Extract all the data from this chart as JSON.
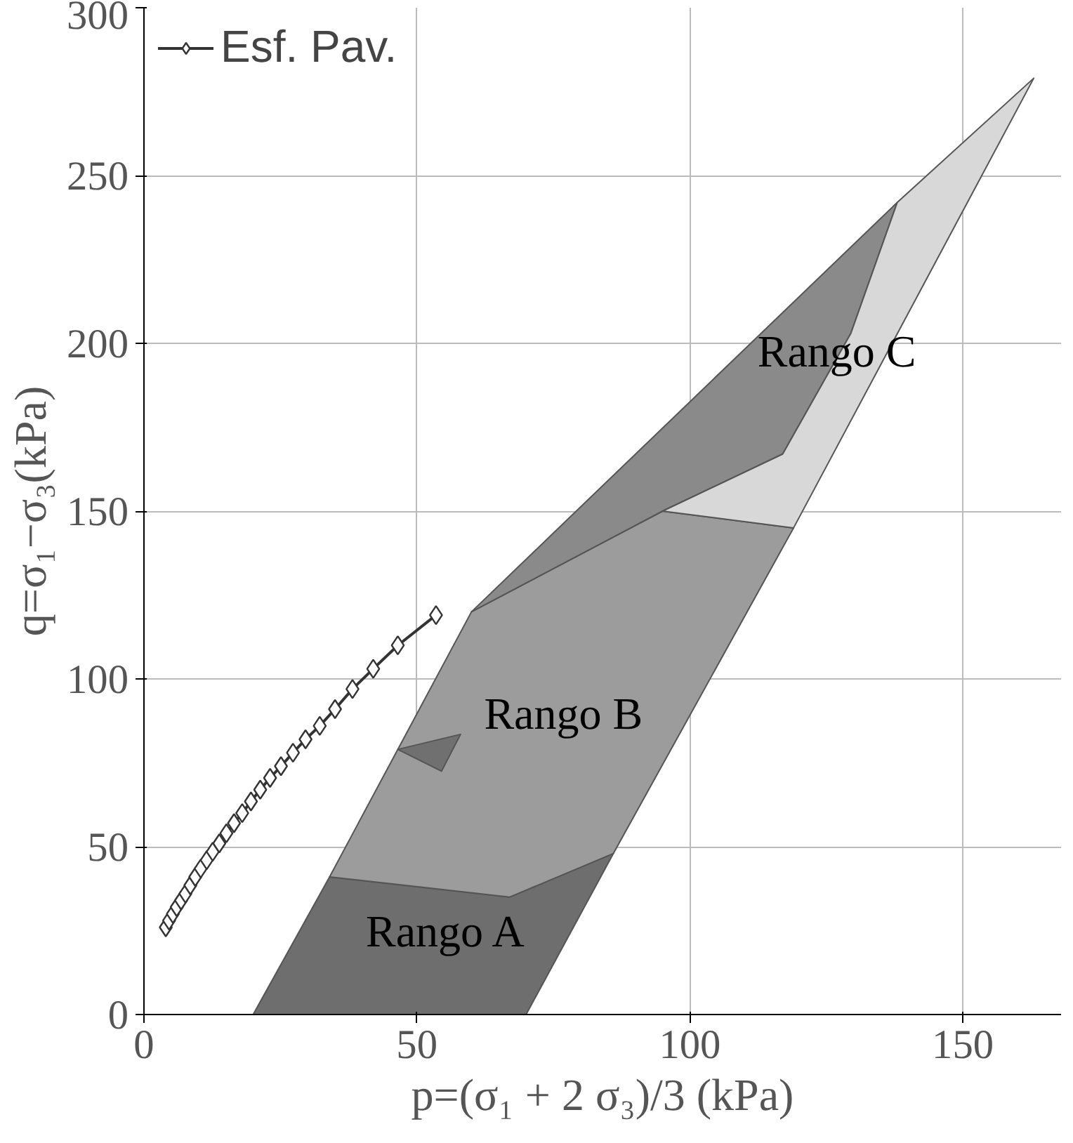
{
  "chart_data": {
    "type": "line",
    "xlabel": "p=(σ₁ + 2 σ₃)/3 (kPa)",
    "ylabel": "q=σ₁−σ₃(kPa)",
    "xlim": [
      0,
      168
    ],
    "ylim": [
      0,
      300
    ],
    "xticks": [
      0,
      50,
      100,
      150
    ],
    "yticks": [
      0,
      50,
      100,
      150,
      200,
      250,
      300
    ],
    "grid": true,
    "legend": "top left",
    "series": [
      {
        "type": "area",
        "name": "Rango A",
        "color": "#6e6e6e",
        "x": [
          20,
          70,
          86,
          67,
          34
        ],
        "values": [
          0,
          0,
          48,
          35,
          41
        ]
      },
      {
        "type": "area",
        "name": "Rango B",
        "color": "#9c9c9c",
        "x": [
          34,
          67,
          86,
          119,
          95,
          60
        ],
        "values": [
          41,
          35,
          48,
          145,
          150,
          120
        ]
      },
      {
        "type": "area",
        "color": "#707070",
        "x": [
          46.5,
          58,
          54.5
        ],
        "values": [
          79,
          83.5,
          72.5
        ]
      },
      {
        "type": "area",
        "color": "#8a8a8a",
        "x": [
          60,
          95,
          117,
          129.5,
          138
        ],
        "values": [
          120,
          150,
          167,
          203,
          242
        ]
      },
      {
        "type": "area",
        "name": "Rango C",
        "color": "#d8d8d8",
        "x": [
          95,
          119,
          163,
          138,
          129.5,
          117
        ],
        "values": [
          150,
          145,
          279,
          242,
          203,
          167
        ]
      },
      {
        "name": "Esf. Pav.",
        "color": "#333333",
        "marker": "diamond",
        "x": [
          4,
          4.6,
          5.3,
          6,
          6.8,
          7.6,
          8.5,
          9.4,
          10.4,
          11.5,
          12.6,
          13.8,
          15.1,
          16.5,
          18,
          19.6,
          21.3,
          23.1,
          25.1,
          27.3,
          29.6,
          32.2,
          35,
          38.2,
          42,
          46.5,
          53.5
        ],
        "values": [
          26,
          28,
          30,
          32,
          34,
          36,
          38.5,
          41,
          43.5,
          46,
          48.5,
          51,
          54,
          57,
          60,
          63.5,
          67,
          70.5,
          74,
          78,
          82,
          86,
          91,
          97,
          103,
          110,
          119
        ]
      }
    ]
  }
}
